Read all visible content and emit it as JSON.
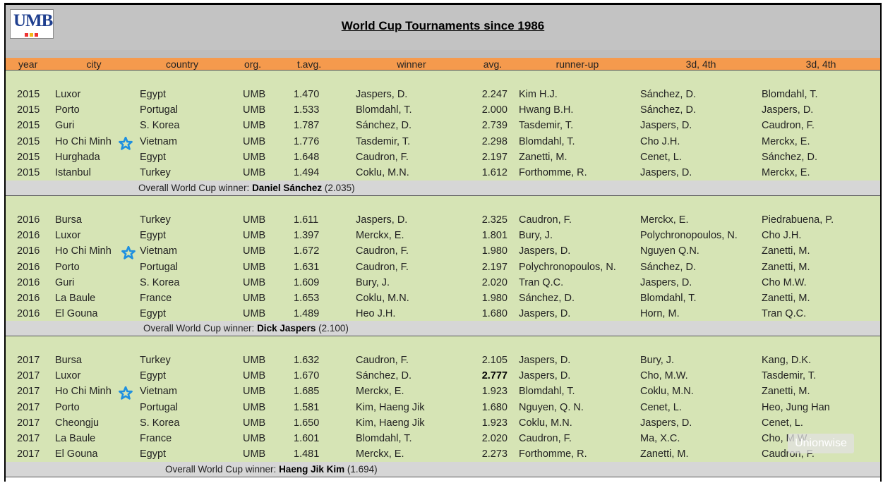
{
  "logo": {
    "text": "UMB",
    "dot_colors": [
      "#e33",
      "#f2b818",
      "#e33"
    ]
  },
  "title": "World Cup Tournaments since 1986",
  "columns": [
    "year",
    "city",
    "country",
    "org.",
    "t.avg.",
    "winner",
    "avg.",
    "runner-up",
    "3d, 4th",
    "3d, 4th"
  ],
  "sections": [
    {
      "rows": [
        {
          "year": "2015",
          "city": "Luxor",
          "country": "Egypt",
          "org": "UMB",
          "tavg": "1.470",
          "winner": "Jaspers, D.",
          "avg": "2.247",
          "runner": "Kim H.J.",
          "third": "Sánchez, D.",
          "fourth": "Blomdahl, T.",
          "star": false,
          "bold_avg": false
        },
        {
          "year": "2015",
          "city": "Porto",
          "country": "Portugal",
          "org": "UMB",
          "tavg": "1.533",
          "winner": "Blomdahl, T.",
          "avg": "2.000",
          "runner": "Hwang B.H.",
          "third": "Sánchez, D.",
          "fourth": "Jaspers, D.",
          "star": false,
          "bold_avg": false
        },
        {
          "year": "2015",
          "city": "Guri",
          "country": "S. Korea",
          "org": "UMB",
          "tavg": "1.787",
          "winner": "Sánchez, D.",
          "avg": "2.739",
          "runner": "Tasdemir, T.",
          "third": "Jaspers, D.",
          "fourth": "Caudron, F.",
          "star": false,
          "bold_avg": false
        },
        {
          "year": "2015",
          "city": "Ho Chi Minh",
          "country": "Vietnam",
          "org": "UMB",
          "tavg": "1.776",
          "winner": "Tasdemir, T.",
          "avg": "2.298",
          "runner": "Blomdahl, T.",
          "third": "Cho J.H.",
          "fourth": "Merckx, E.",
          "star": true,
          "bold_avg": false
        },
        {
          "year": "2015",
          "city": "Hurghada",
          "country": "Egypt",
          "org": "UMB",
          "tavg": "1.648",
          "winner": "Caudron, F.",
          "avg": "2.197",
          "runner": "Zanetti, M.",
          "third": "Cenet, L.",
          "fourth": "Sánchez, D.",
          "star": false,
          "bold_avg": false
        },
        {
          "year": "2015",
          "city": "Istanbul",
          "country": "Turkey",
          "org": "UMB",
          "tavg": "1.494",
          "winner": "Coklu, M.N.",
          "avg": "1.612",
          "runner": "Forthomme, R.",
          "third": "Jaspers, D.",
          "fourth": "Merckx, E.",
          "star": false,
          "bold_avg": false
        }
      ],
      "footer": {
        "prefix": "Overall World Cup winner: ",
        "name": "Daniel Sánchez",
        "suffix": " (2.035)"
      }
    },
    {
      "rows": [
        {
          "year": "2016",
          "city": "Bursa",
          "country": "Turkey",
          "org": "UMB",
          "tavg": "1.611",
          "winner": "Jaspers, D.",
          "avg": "2.325",
          "runner": "Caudron, F.",
          "third": "Merckx, E.",
          "fourth": "Piedrabuena, P.",
          "star": false,
          "bold_avg": false
        },
        {
          "year": "2016",
          "city": "Luxor",
          "country": "Egypt",
          "org": "UMB",
          "tavg": "1.397",
          "winner": "Merckx, E.",
          "avg": "1.801",
          "runner": "Bury, J.",
          "third": "Polychronopoulos, N.",
          "fourth": "Cho J.H.",
          "star": false,
          "bold_avg": false
        },
        {
          "year": "2016",
          "city": "Ho Chi Minh",
          "country": "Vietnam",
          "org": "UMB",
          "tavg": "1.672",
          "winner": "Caudron, F.",
          "avg": "1.980",
          "runner": "Jaspers, D.",
          "third": "Nguyen Q.N.",
          "fourth": "Zanetti, M.",
          "star": true,
          "bold_avg": false
        },
        {
          "year": "2016",
          "city": "Porto",
          "country": "Portugal",
          "org": "UMB",
          "tavg": "1.631",
          "winner": "Caudron, F.",
          "avg": "2.197",
          "runner": "Polychronopoulos, N.",
          "third": "Sánchez, D.",
          "fourth": "Zanetti, M.",
          "star": false,
          "bold_avg": false
        },
        {
          "year": "2016",
          "city": "Guri",
          "country": "S. Korea",
          "org": "UMB",
          "tavg": "1.609",
          "winner": "Bury, J.",
          "avg": "2.020",
          "runner": "Tran Q.C.",
          "third": "Jaspers, D.",
          "fourth": "Cho M.W.",
          "star": false,
          "bold_avg": false
        },
        {
          "year": "2016",
          "city": "La Baule",
          "country": "France",
          "org": "UMB",
          "tavg": "1.653",
          "winner": "Coklu, M.N.",
          "avg": "1.980",
          "runner": "Sánchez, D.",
          "third": "Blomdahl, T.",
          "fourth": "Zanetti, M.",
          "star": false,
          "bold_avg": false
        },
        {
          "year": "2016",
          "city": "El Gouna",
          "country": "Egypt",
          "org": "UMB",
          "tavg": "1.489",
          "winner": "Heo J.H.",
          "avg": "1.680",
          "runner": "Jaspers, D.",
          "third": "Horn, M.",
          "fourth": "Tran Q.C.",
          "star": false,
          "bold_avg": false
        }
      ],
      "footer": {
        "prefix": "Overall World Cup winner: ",
        "name": "Dick  Jaspers",
        "suffix": " (2.100)"
      }
    },
    {
      "rows": [
        {
          "year": "2017",
          "city": "Bursa",
          "country": "Turkey",
          "org": "UMB",
          "tavg": "1.632",
          "winner": "Caudron, F.",
          "avg": "2.105",
          "runner": "Jaspers, D.",
          "third": "Bury, J.",
          "fourth": "Kang, D.K.",
          "star": false,
          "bold_avg": false
        },
        {
          "year": "2017",
          "city": "Luxor",
          "country": "Egypt",
          "org": "UMB",
          "tavg": "1.670",
          "winner": "Sánchez, D.",
          "avg": "2.777",
          "runner": "Jaspers, D.",
          "third": "Cho, M.W.",
          "fourth": "Tasdemir, T.",
          "star": false,
          "bold_avg": true
        },
        {
          "year": "2017",
          "city": "Ho Chi Minh",
          "country": "Vietnam",
          "org": "UMB",
          "tavg": "1.685",
          "winner": "Merckx, E.",
          "avg": "1.923",
          "runner": "Blomdahl, T.",
          "third": "Coklu, M.N.",
          "fourth": "Zanetti, M.",
          "star": true,
          "bold_avg": false
        },
        {
          "year": "2017",
          "city": "Porto",
          "country": "Portugal",
          "org": "UMB",
          "tavg": "1.581",
          "winner": "Kim, Haeng Jik",
          "avg": "1.680",
          "runner": "Nguyen, Q. N.",
          "third": "Cenet, L.",
          "fourth": "Heo, Jung Han",
          "star": false,
          "bold_avg": false
        },
        {
          "year": "2017",
          "city": "Cheongju",
          "country": "S. Korea",
          "org": "UMB",
          "tavg": "1.650",
          "winner": "Kim, Haeng Jik",
          "avg": "1.923",
          "runner": "Coklu, M.N.",
          "third": "Jaspers, D.",
          "fourth": "Cenet, L.",
          "star": false,
          "bold_avg": false
        },
        {
          "year": "2017",
          "city": "La Baule",
          "country": "France",
          "org": "UMB",
          "tavg": "1.601",
          "winner": "Blomdahl, T.",
          "avg": "2.020",
          "runner": "Caudron, F.",
          "third": "Ma, X.C.",
          "fourth": "Cho, M.W.",
          "star": false,
          "bold_avg": false
        },
        {
          "year": "2017",
          "city": "El Gouna",
          "country": "Egypt",
          "org": "UMB",
          "tavg": "1.481",
          "winner": "Merckx, E.",
          "avg": "2.273",
          "runner": "Forthomme, R.",
          "third": "Zanetti, M.",
          "fourth": "Caudron, F.",
          "star": false,
          "bold_avg": false
        }
      ],
      "footer": {
        "prefix": "Overall World Cup winner: ",
        "name": "Haeng Jik Kim",
        "suffix": " (1.694)"
      }
    }
  ],
  "watermark": "Unionwise",
  "colors": {
    "header_bg": "#c3c3c3",
    "column_header_bg": "#f59a4d",
    "section_bg": "#d6e4b5",
    "footer_bg": "#d6d6d6",
    "star": "#1e90e0"
  }
}
